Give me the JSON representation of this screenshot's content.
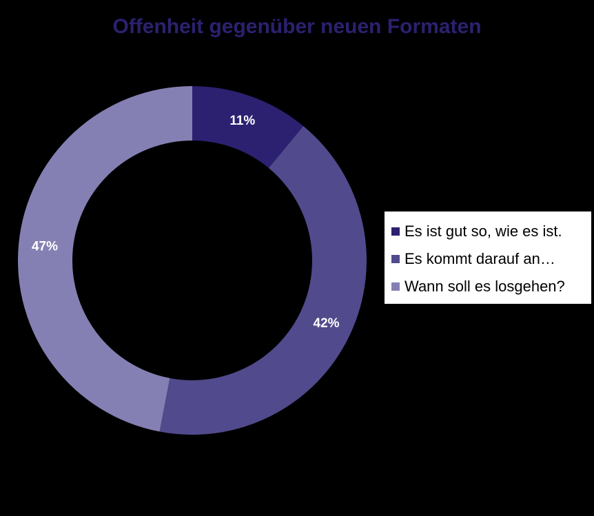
{
  "chart_data": {
    "type": "pie",
    "title": "Offenheit gegenüber neuen Formaten",
    "categories": [
      "Es ist gut so, wie es ist.",
      "Es kommt darauf an…",
      "Wann soll es losgehen?"
    ],
    "values": [
      11,
      42,
      47
    ],
    "labels": [
      "11%",
      "42%",
      "47%"
    ],
    "colors": [
      "#2b2170",
      "#514a8c",
      "#8580b3"
    ],
    "legend": "right",
    "style": "donut"
  }
}
